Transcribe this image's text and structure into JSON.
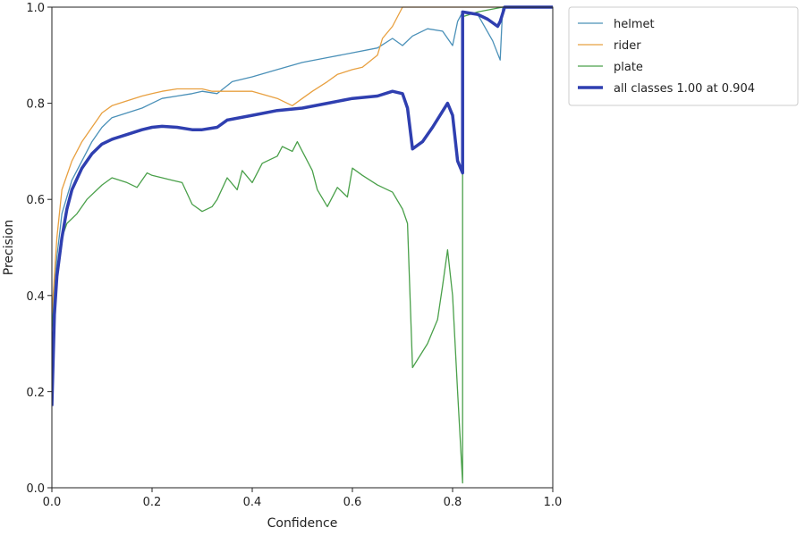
{
  "chart_data": {
    "type": "line",
    "title": "",
    "xlabel": "Confidence",
    "ylabel": "Precision",
    "xlim": [
      0.0,
      1.0
    ],
    "ylim": [
      0.0,
      1.0
    ],
    "x_ticks": [
      "0.0",
      "0.2",
      "0.4",
      "0.6",
      "0.8",
      "1.0"
    ],
    "y_ticks": [
      "0.0",
      "0.2",
      "0.4",
      "0.6",
      "0.8",
      "1.0"
    ],
    "grid": false,
    "legend_position": "outside-top-right",
    "series": [
      {
        "name": "helmet",
        "color": "#4a90b8",
        "width": "thin",
        "points": [
          [
            0.0,
            0.34
          ],
          [
            0.01,
            0.48
          ],
          [
            0.02,
            0.57
          ],
          [
            0.04,
            0.64
          ],
          [
            0.06,
            0.68
          ],
          [
            0.08,
            0.72
          ],
          [
            0.1,
            0.75
          ],
          [
            0.12,
            0.77
          ],
          [
            0.15,
            0.78
          ],
          [
            0.18,
            0.79
          ],
          [
            0.2,
            0.8
          ],
          [
            0.22,
            0.81
          ],
          [
            0.25,
            0.815
          ],
          [
            0.28,
            0.82
          ],
          [
            0.3,
            0.825
          ],
          [
            0.33,
            0.82
          ],
          [
            0.36,
            0.845
          ],
          [
            0.4,
            0.855
          ],
          [
            0.45,
            0.87
          ],
          [
            0.5,
            0.885
          ],
          [
            0.55,
            0.895
          ],
          [
            0.6,
            0.905
          ],
          [
            0.65,
            0.915
          ],
          [
            0.68,
            0.935
          ],
          [
            0.7,
            0.92
          ],
          [
            0.72,
            0.94
          ],
          [
            0.75,
            0.955
          ],
          [
            0.78,
            0.95
          ],
          [
            0.8,
            0.92
          ],
          [
            0.81,
            0.97
          ],
          [
            0.82,
            0.99
          ],
          [
            0.85,
            0.985
          ],
          [
            0.88,
            0.93
          ],
          [
            0.895,
            0.89
          ],
          [
            0.9,
            1.0
          ],
          [
            1.0,
            1.0
          ]
        ]
      },
      {
        "name": "rider",
        "color": "#e8a040",
        "width": "thin",
        "points": [
          [
            0.0,
            0.36
          ],
          [
            0.01,
            0.52
          ],
          [
            0.02,
            0.62
          ],
          [
            0.04,
            0.68
          ],
          [
            0.06,
            0.72
          ],
          [
            0.08,
            0.75
          ],
          [
            0.1,
            0.78
          ],
          [
            0.12,
            0.795
          ],
          [
            0.15,
            0.805
          ],
          [
            0.18,
            0.815
          ],
          [
            0.2,
            0.82
          ],
          [
            0.22,
            0.825
          ],
          [
            0.25,
            0.83
          ],
          [
            0.28,
            0.83
          ],
          [
            0.3,
            0.83
          ],
          [
            0.32,
            0.825
          ],
          [
            0.35,
            0.825
          ],
          [
            0.4,
            0.825
          ],
          [
            0.45,
            0.81
          ],
          [
            0.48,
            0.795
          ],
          [
            0.5,
            0.81
          ],
          [
            0.52,
            0.825
          ],
          [
            0.55,
            0.845
          ],
          [
            0.57,
            0.86
          ],
          [
            0.6,
            0.87
          ],
          [
            0.62,
            0.875
          ],
          [
            0.65,
            0.9
          ],
          [
            0.66,
            0.935
          ],
          [
            0.68,
            0.96
          ],
          [
            0.7,
            1.0
          ],
          [
            1.0,
            1.0
          ]
        ]
      },
      {
        "name": "plate",
        "color": "#4aa04a",
        "width": "thin",
        "points": [
          [
            0.0,
            0.33
          ],
          [
            0.01,
            0.45
          ],
          [
            0.02,
            0.52
          ],
          [
            0.03,
            0.55
          ],
          [
            0.05,
            0.57
          ],
          [
            0.07,
            0.6
          ],
          [
            0.1,
            0.63
          ],
          [
            0.12,
            0.645
          ],
          [
            0.15,
            0.635
          ],
          [
            0.17,
            0.625
          ],
          [
            0.19,
            0.655
          ],
          [
            0.2,
            0.65
          ],
          [
            0.22,
            0.645
          ],
          [
            0.24,
            0.64
          ],
          [
            0.26,
            0.635
          ],
          [
            0.28,
            0.59
          ],
          [
            0.3,
            0.575
          ],
          [
            0.32,
            0.585
          ],
          [
            0.33,
            0.6
          ],
          [
            0.35,
            0.645
          ],
          [
            0.37,
            0.62
          ],
          [
            0.38,
            0.66
          ],
          [
            0.4,
            0.635
          ],
          [
            0.42,
            0.675
          ],
          [
            0.45,
            0.69
          ],
          [
            0.46,
            0.71
          ],
          [
            0.48,
            0.7
          ],
          [
            0.49,
            0.72
          ],
          [
            0.5,
            0.7
          ],
          [
            0.52,
            0.66
          ],
          [
            0.53,
            0.62
          ],
          [
            0.55,
            0.585
          ],
          [
            0.57,
            0.625
          ],
          [
            0.59,
            0.605
          ],
          [
            0.6,
            0.665
          ],
          [
            0.62,
            0.65
          ],
          [
            0.65,
            0.63
          ],
          [
            0.68,
            0.615
          ],
          [
            0.7,
            0.58
          ],
          [
            0.71,
            0.55
          ],
          [
            0.72,
            0.25
          ],
          [
            0.75,
            0.3
          ],
          [
            0.77,
            0.35
          ],
          [
            0.78,
            0.42
          ],
          [
            0.79,
            0.495
          ],
          [
            0.8,
            0.4
          ],
          [
            0.81,
            0.2
          ],
          [
            0.82,
            0.01
          ],
          [
            0.82,
            0.98
          ],
          [
            0.85,
            0.99
          ],
          [
            0.9,
            1.0
          ],
          [
            1.0,
            1.0
          ]
        ]
      },
      {
        "name": "all classes 1.00 at 0.904",
        "color": "#2f3fb0",
        "width": "thick",
        "points": [
          [
            0.0,
            0.17
          ],
          [
            0.005,
            0.36
          ],
          [
            0.01,
            0.44
          ],
          [
            0.02,
            0.52
          ],
          [
            0.03,
            0.58
          ],
          [
            0.04,
            0.62
          ],
          [
            0.06,
            0.665
          ],
          [
            0.08,
            0.695
          ],
          [
            0.1,
            0.715
          ],
          [
            0.12,
            0.725
          ],
          [
            0.15,
            0.735
          ],
          [
            0.18,
            0.745
          ],
          [
            0.2,
            0.75
          ],
          [
            0.22,
            0.752
          ],
          [
            0.25,
            0.75
          ],
          [
            0.28,
            0.745
          ],
          [
            0.3,
            0.745
          ],
          [
            0.33,
            0.75
          ],
          [
            0.35,
            0.765
          ],
          [
            0.4,
            0.775
          ],
          [
            0.45,
            0.785
          ],
          [
            0.5,
            0.79
          ],
          [
            0.55,
            0.8
          ],
          [
            0.6,
            0.81
          ],
          [
            0.65,
            0.815
          ],
          [
            0.68,
            0.825
          ],
          [
            0.7,
            0.82
          ],
          [
            0.71,
            0.79
          ],
          [
            0.72,
            0.705
          ],
          [
            0.74,
            0.72
          ],
          [
            0.76,
            0.75
          ],
          [
            0.79,
            0.8
          ],
          [
            0.8,
            0.775
          ],
          [
            0.81,
            0.68
          ],
          [
            0.82,
            0.655
          ],
          [
            0.82,
            0.99
          ],
          [
            0.85,
            0.985
          ],
          [
            0.87,
            0.975
          ],
          [
            0.89,
            0.96
          ],
          [
            0.895,
            0.97
          ],
          [
            0.904,
            1.0
          ],
          [
            1.0,
            1.0
          ]
        ]
      }
    ]
  }
}
